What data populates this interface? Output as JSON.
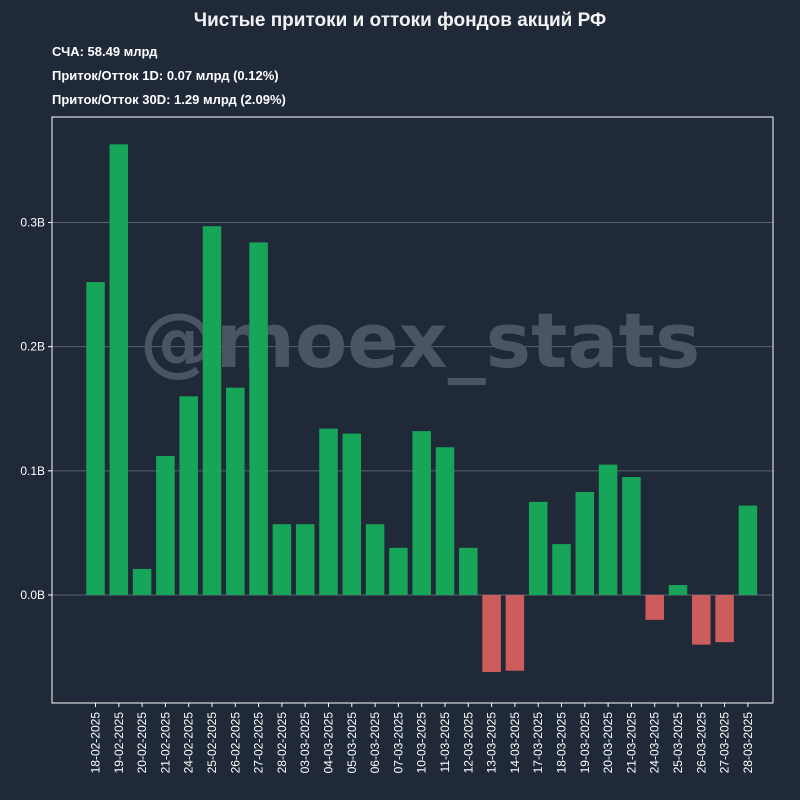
{
  "header": {
    "title": "Чистые притоки и оттоки фондов акций РФ",
    "stats": [
      "СЧА: 58.49 млрд",
      "Приток/Отток 1D: 0.07 млрд (0.12%)",
      "Приток/Отток 30D: 1.29 млрд (2.09%)"
    ]
  },
  "watermark": "@moex_stats",
  "colors": {
    "background": "#1f2938",
    "positive": "#17a55a",
    "negative": "#cd5c5c",
    "grid": "#5a6270",
    "axis": "#ffffff",
    "watermark": "#4a5463"
  },
  "chart_data": {
    "type": "bar",
    "title": "Чистые притоки и оттоки фондов акций РФ",
    "xlabel": "",
    "ylabel": "",
    "ylim": [
      -0.087,
      0.385
    ],
    "yticks": [
      0.0,
      0.1,
      0.2,
      0.3
    ],
    "ytick_labels": [
      "0.0B",
      "0.1B",
      "0.2B",
      "0.3B"
    ],
    "grid": "horizontal",
    "categories": [
      "18-02-2025",
      "19-02-2025",
      "20-02-2025",
      "21-02-2025",
      "24-02-2025",
      "25-02-2025",
      "26-02-2025",
      "27-02-2025",
      "28-02-2025",
      "03-03-2025",
      "04-03-2025",
      "05-03-2025",
      "06-03-2025",
      "07-03-2025",
      "10-03-2025",
      "11-03-2025",
      "12-03-2025",
      "13-03-2025",
      "14-03-2025",
      "17-03-2025",
      "18-03-2025",
      "19-03-2025",
      "20-03-2025",
      "21-03-2025",
      "24-03-2025",
      "25-03-2025",
      "26-03-2025",
      "27-03-2025",
      "28-03-2025"
    ],
    "values": [
      0.252,
      0.363,
      0.021,
      0.112,
      0.16,
      0.297,
      0.167,
      0.284,
      0.057,
      0.057,
      0.134,
      0.13,
      0.057,
      0.038,
      0.132,
      0.119,
      0.038,
      -0.062,
      -0.061,
      0.075,
      0.041,
      0.083,
      0.105,
      0.095,
      -0.02,
      0.008,
      -0.04,
      -0.038,
      0.072
    ]
  }
}
